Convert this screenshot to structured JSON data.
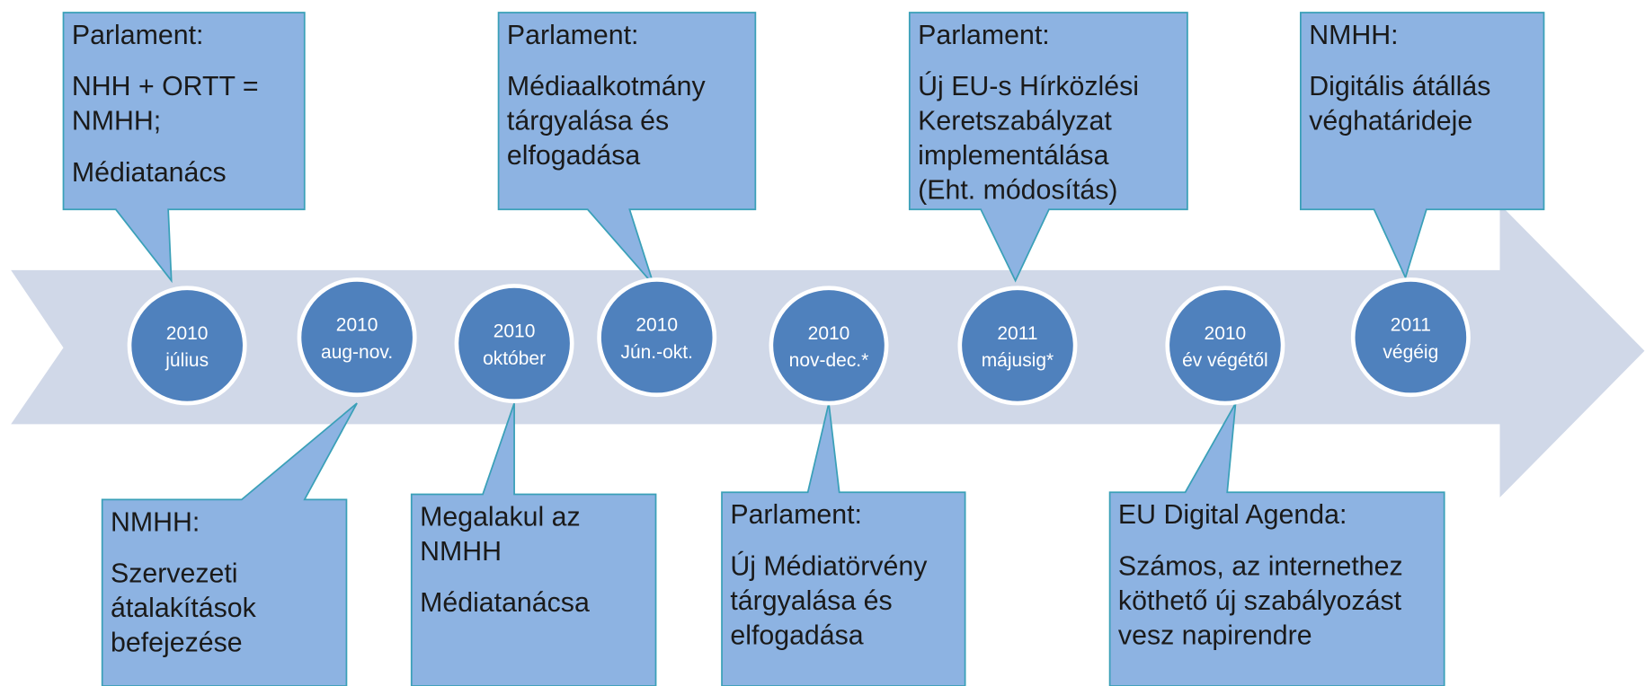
{
  "milestones": [
    {
      "year": "2010",
      "period": "július"
    },
    {
      "year": "2010",
      "period": "aug-nov."
    },
    {
      "year": "2010",
      "period": "október"
    },
    {
      "year": "2010",
      "period": "Jún.-okt."
    },
    {
      "year": "2010",
      "period": "nov-dec.*"
    },
    {
      "year": "2011",
      "period": "májusig*"
    },
    {
      "year": "2010",
      "period": "év végétől"
    },
    {
      "year": "2011",
      "period": "végéig"
    }
  ],
  "callouts": [
    {
      "paragraphs": [
        [
          "Parlament:"
        ],
        [
          "NHH + ORTT  =",
          "NMHH;"
        ],
        [
          "Médiatanács"
        ]
      ]
    },
    {
      "paragraphs": [
        [
          "Parlament:"
        ],
        [
          "Médiaalkotmány",
          "tárgyalása és",
          "elfogadása"
        ]
      ]
    },
    {
      "paragraphs": [
        [
          "Parlament:"
        ],
        [
          "Új EU-s Hírközlési",
          "Keretszabályzat",
          "implementálása",
          "(Eht. módosítás)"
        ]
      ]
    },
    {
      "paragraphs": [
        [
          "NMHH:"
        ],
        [
          "Digitális átállás",
          "véghatárideje"
        ]
      ]
    },
    {
      "paragraphs": [
        [
          "NMHH:"
        ],
        [
          "Szervezeti",
          "átalakítások",
          "befejezése"
        ]
      ]
    },
    {
      "paragraphs": [
        [
          "Megalakul az",
          "NMHH"
        ],
        [
          "Médiatanácsa"
        ]
      ]
    },
    {
      "paragraphs": [
        [
          "Parlament:"
        ],
        [
          "Új Médiatörvény",
          "tárgyalása és",
          "elfogadása"
        ]
      ]
    },
    {
      "paragraphs": [
        [
          "EU Digital Agenda:"
        ],
        [
          "Számos, az internethez",
          "köthető új szabályozást",
          "vesz napirendre"
        ]
      ]
    }
  ]
}
